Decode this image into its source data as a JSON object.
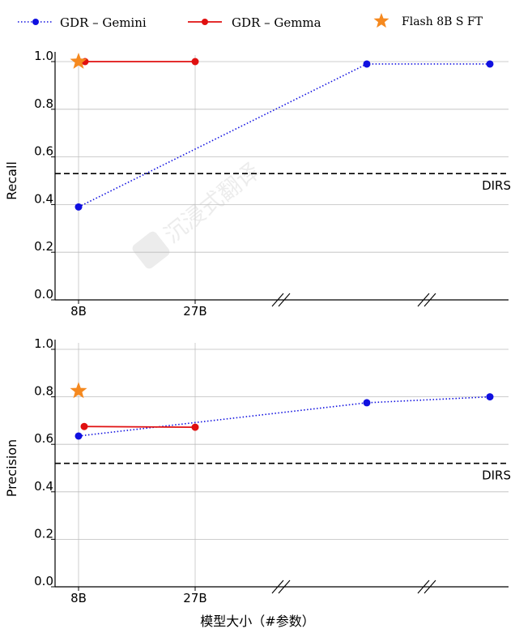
{
  "chart_data": [
    {
      "type": "line",
      "ylabel": "Recall",
      "ylim": [
        0,
        1.0
      ],
      "yticks": [
        "0.0",
        "0.2",
        "0.4",
        "0.6",
        "0.8",
        "1.0"
      ],
      "x_tick_labels": [
        "8B",
        "27B"
      ],
      "x_axis_breaks": 2,
      "grid": "vertical lines at labeled sizes",
      "series": [
        {
          "name": "GDR – Gemini",
          "style": "dotted",
          "color": "#1010e0",
          "points": [
            {
              "x": "8B",
              "y": 0.39
            },
            {
              "x": "(unlabeled)",
              "y": 0.99
            },
            {
              "x": "(unlabeled)",
              "y": 0.99
            }
          ]
        },
        {
          "name": "GDR – Gemma",
          "style": "solid",
          "color": "#e01010",
          "points": [
            {
              "x": "8B",
              "y": 1.0
            },
            {
              "x": "27B",
              "y": 1.0
            }
          ]
        },
        {
          "name": "Flash 8B S FT",
          "style": "star",
          "color": "#f5891f",
          "points": [
            {
              "x": "8B",
              "y": 1.0
            }
          ]
        }
      ],
      "reference_line": {
        "label": "DIRS",
        "y": 0.53,
        "style": "dashed"
      }
    },
    {
      "type": "line",
      "ylabel": "Precision",
      "xlabel": "模型大小（#参数）",
      "ylim": [
        0,
        1.0
      ],
      "yticks": [
        "0.0",
        "0.2",
        "0.4",
        "0.6",
        "0.8",
        "1.0"
      ],
      "x_tick_labels": [
        "8B",
        "27B"
      ],
      "x_axis_breaks": 2,
      "grid": "vertical lines at labeled sizes",
      "series": [
        {
          "name": "GDR – Gemini",
          "style": "dotted",
          "color": "#1010e0",
          "points": [
            {
              "x": "8B",
              "y": 0.635
            },
            {
              "x": "(unlabeled)",
              "y": 0.775
            },
            {
              "x": "(unlabeled)",
              "y": 0.8
            }
          ]
        },
        {
          "name": "GDR – Gemma",
          "style": "solid",
          "color": "#e01010",
          "points": [
            {
              "x": "8B",
              "y": 0.675
            },
            {
              "x": "27B",
              "y": 0.672
            }
          ]
        },
        {
          "name": "Flash 8B S FT",
          "style": "star",
          "color": "#f5891f",
          "points": [
            {
              "x": "8B",
              "y": 0.825
            }
          ]
        }
      ],
      "reference_line": {
        "label": "DIRS",
        "y": 0.52,
        "style": "dashed"
      }
    }
  ],
  "legend": {
    "placement": "top",
    "entries": [
      {
        "label": "GDR – Gemini",
        "style": "dotted",
        "color": "#1010e0"
      },
      {
        "label": "GDR – Gemma",
        "style": "solid",
        "color": "#e01010"
      },
      {
        "label": "Flash 8B S FT",
        "style": "star",
        "color": "#f5891f"
      }
    ]
  },
  "watermark": "沉浸式翻译"
}
